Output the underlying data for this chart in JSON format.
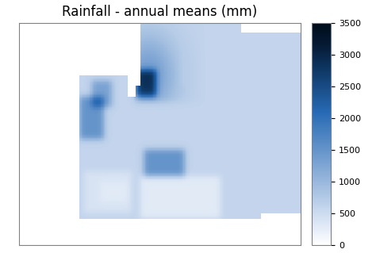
{
  "title": "Rainfall - annual means (mm)",
  "title_fontsize": 12,
  "colorbar_ticks": [
    0,
    500,
    1000,
    1500,
    2000,
    2500,
    3000,
    3500
  ],
  "vmin": 0,
  "vmax": 3500,
  "cmap_colors": [
    "#ffffff",
    "#dce6f5",
    "#b8cde8",
    "#94b4db",
    "#6f9bce",
    "#4b82c1",
    "#2769b4",
    "#1a4f8a",
    "#0d3560",
    "#061a35",
    "#000d1a"
  ],
  "bg_color": "#ffffff",
  "map_background": "#ffffff",
  "lon_min": -25,
  "lon_max": 45,
  "lat_min": 30,
  "lat_max": 72,
  "figsize": [
    4.74,
    3.19
  ],
  "dpi": 100
}
